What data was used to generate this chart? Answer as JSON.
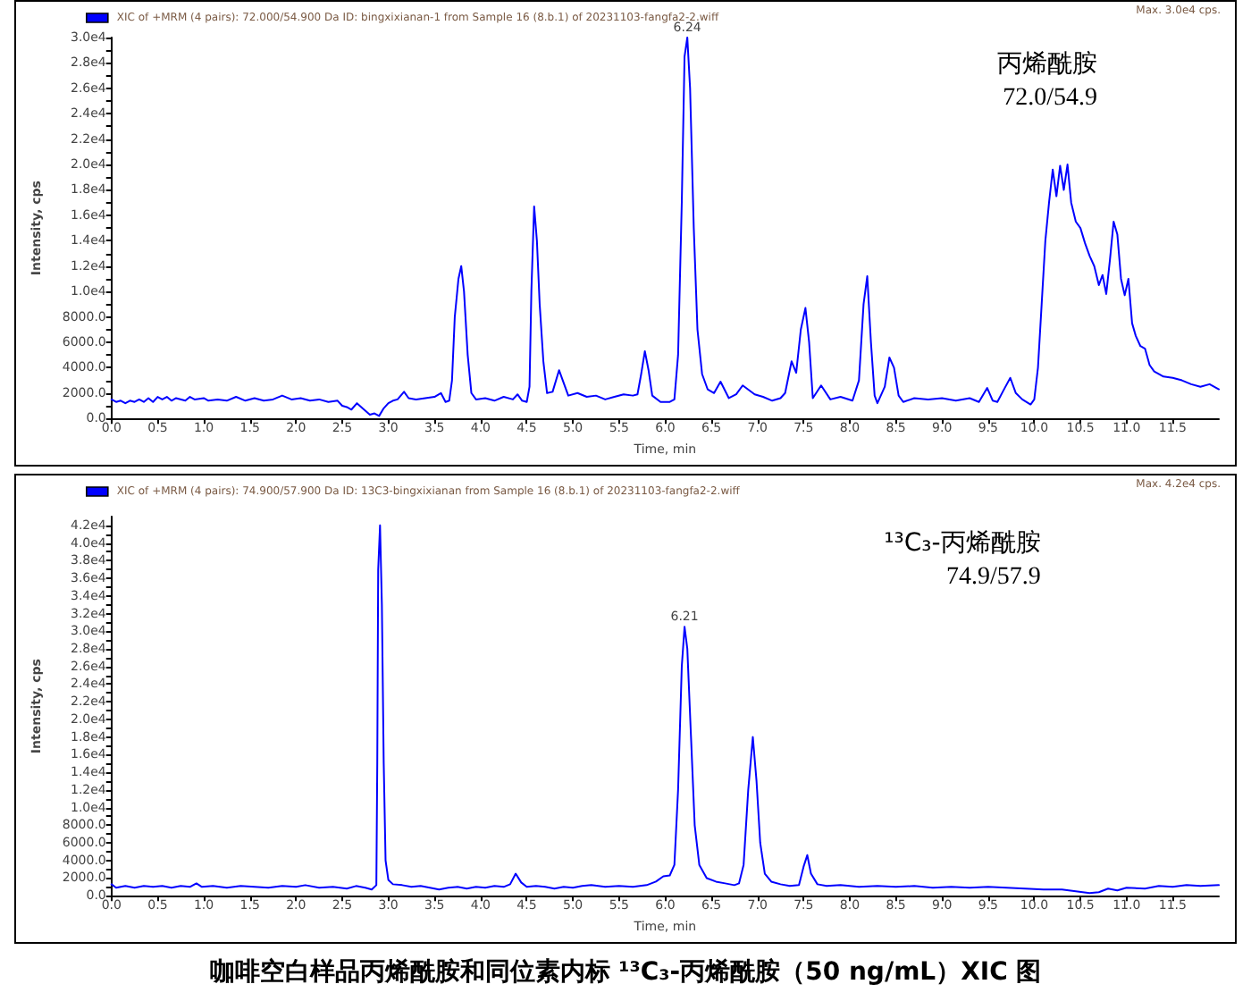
{
  "chart_data": [
    {
      "type": "line",
      "title": "丙烯酰胺",
      "subtitle": "72.0/54.9",
      "xlabel": "Time, min",
      "ylabel": "Intensity, cps",
      "legend": "top left",
      "grid": false,
      "marker": "none",
      "line_style": "solid",
      "annotations": [
        "Max. 3.0e4 cps.",
        {
          "text": "6.24",
          "x": 6.24,
          "y": 30000
        }
      ],
      "xlim": [
        0,
        12
      ],
      "ylim": [
        0,
        30000
      ],
      "xticks": [
        {
          "value": 0,
          "label": "0.0"
        },
        0.5,
        {
          "value": 1,
          "label": "1.0"
        },
        1.5,
        {
          "value": 2,
          "label": "2.0"
        },
        2.5,
        {
          "value": 3,
          "label": "3.0"
        },
        3.5,
        {
          "value": 4,
          "label": "4.0"
        },
        4.5,
        {
          "value": 5,
          "label": "5.0"
        },
        5.5,
        {
          "value": 6,
          "label": "6.0"
        },
        6.5,
        {
          "value": 7,
          "label": "7.0"
        },
        7.5,
        {
          "value": 8,
          "label": "8.0"
        },
        8.5,
        {
          "value": 9,
          "label": "9.0"
        },
        9.5,
        {
          "value": 10,
          "label": "10.0"
        },
        10.5,
        {
          "value": 11,
          "label": "11.0"
        },
        11.5
      ],
      "yticks": [
        {
          "value": 0,
          "label": "0.0"
        },
        {
          "value": 1000,
          "label": null
        },
        {
          "value": 2000,
          "label": "2000.0"
        },
        {
          "value": 3000,
          "label": null
        },
        {
          "value": 4000,
          "label": "4000.0"
        },
        {
          "value": 5000,
          "label": null
        },
        {
          "value": 6000,
          "label": "6000.0"
        },
        {
          "value": 7000,
          "label": null
        },
        {
          "value": 8000,
          "label": "8000.0"
        },
        {
          "value": 9000,
          "label": null
        },
        {
          "value": 10000,
          "label": "1.0e4"
        },
        {
          "value": 11000,
          "label": null
        },
        {
          "value": 12000,
          "label": "1.2e4"
        },
        {
          "value": 13000,
          "label": null
        },
        {
          "value": 14000,
          "label": "1.4e4"
        },
        {
          "value": 15000,
          "label": null
        },
        {
          "value": 16000,
          "label": "1.6e4"
        },
        {
          "value": 17000,
          "label": null
        },
        {
          "value": 18000,
          "label": "1.8e4"
        },
        {
          "value": 19000,
          "label": null
        },
        {
          "value": 20000,
          "label": "2.0e4"
        },
        {
          "value": 21000,
          "label": null
        },
        {
          "value": 22000,
          "label": "2.2e4"
        },
        {
          "value": 23000,
          "label": null
        },
        {
          "value": 24000,
          "label": "2.4e4"
        },
        {
          "value": 25000,
          "label": null
        },
        {
          "value": 26000,
          "label": "2.6e4"
        },
        {
          "value": 27000,
          "label": null
        },
        {
          "value": 28000,
          "label": "2.8e4"
        },
        {
          "value": 29000,
          "label": null
        },
        {
          "value": 30000,
          "label": "3.0e4"
        }
      ],
      "x": [
        0,
        0.05,
        0.1,
        0.15,
        0.2,
        0.25,
        0.3,
        0.35,
        0.4,
        0.45,
        0.5,
        0.55,
        0.6,
        0.65,
        0.7,
        0.8,
        0.85,
        0.9,
        1,
        1.05,
        1.15,
        1.25,
        1.35,
        1.45,
        1.55,
        1.65,
        1.75,
        1.85,
        1.95,
        2.05,
        2.15,
        2.25,
        2.35,
        2.45,
        2.5,
        2.55,
        2.6,
        2.66,
        2.72,
        2.8,
        2.85,
        2.9,
        2.95,
        3,
        3.05,
        3.1,
        3.17,
        3.22,
        3.3,
        3.4,
        3.5,
        3.57,
        3.62,
        3.66,
        3.69,
        3.72,
        3.76,
        3.79,
        3.82,
        3.86,
        3.9,
        3.95,
        4.05,
        4.15,
        4.25,
        4.35,
        4.4,
        4.45,
        4.5,
        4.53,
        4.55,
        4.58,
        4.61,
        4.64,
        4.68,
        4.72,
        4.78,
        4.85,
        4.9,
        4.95,
        5.05,
        5.15,
        5.25,
        5.35,
        5.45,
        5.55,
        5.65,
        5.7,
        5.74,
        5.78,
        5.82,
        5.86,
        5.95,
        6.05,
        6.1,
        6.14,
        6.18,
        6.21,
        6.24,
        6.27,
        6.31,
        6.35,
        6.4,
        6.46,
        6.53,
        6.6,
        6.69,
        6.77,
        6.84,
        6.97,
        7.06,
        7.16,
        7.25,
        7.3,
        7.37,
        7.42,
        7.47,
        7.52,
        7.56,
        7.6,
        7.69,
        7.79,
        7.9,
        8.03,
        8.1,
        8.15,
        8.19,
        8.23,
        8.27,
        8.3,
        8.38,
        8.43,
        8.48,
        8.53,
        8.58,
        8.7,
        8.85,
        9,
        9.15,
        9.3,
        9.4,
        9.49,
        9.55,
        9.6,
        9.68,
        9.74,
        9.8,
        9.87,
        9.96,
        10,
        10.04,
        10.08,
        10.12,
        10.16,
        10.2,
        10.24,
        10.28,
        10.32,
        10.36,
        10.4,
        10.45,
        10.5,
        10.55,
        10.6,
        10.65,
        10.7,
        10.74,
        10.78,
        10.82,
        10.86,
        10.9,
        10.94,
        10.98,
        11.02,
        11.06,
        11.1,
        11.15,
        11.2,
        11.25,
        11.3,
        11.4,
        11.5,
        11.6,
        11.7,
        11.8,
        11.9,
        12
      ],
      "series": [
        {
          "name": "XIC of +MRM (4 pairs): 72.000/54.900 Da ID: bingxixianan-1 from Sample 16 (8.b.1) of 20231103-fangfa2-2.wiff",
          "color": "#0000ff",
          "values": [
            1500,
            1300,
            1400,
            1200,
            1400,
            1300,
            1500,
            1300,
            1600,
            1300,
            1700,
            1500,
            1700,
            1400,
            1600,
            1400,
            1700,
            1500,
            1600,
            1400,
            1500,
            1400,
            1700,
            1400,
            1600,
            1400,
            1500,
            1800,
            1500,
            1600,
            1400,
            1500,
            1300,
            1400,
            1000,
            900,
            700,
            1200,
            800,
            300,
            400,
            200,
            800,
            1200,
            1400,
            1500,
            2100,
            1600,
            1500,
            1600,
            1700,
            2000,
            1300,
            1400,
            3000,
            8000,
            11000,
            12000,
            10000,
            5000,
            2000,
            1500,
            1600,
            1400,
            1700,
            1500,
            1900,
            1400,
            1300,
            2500,
            10000,
            16700,
            14000,
            9000,
            4500,
            2000,
            2100,
            3800,
            2800,
            1800,
            2000,
            1700,
            1800,
            1500,
            1700,
            1900,
            1800,
            1900,
            3500,
            5300,
            3800,
            1800,
            1300,
            1300,
            1500,
            5000,
            17000,
            28500,
            30000,
            26000,
            15000,
            7000,
            3500,
            2300,
            2000,
            2900,
            1600,
            1900,
            2600,
            1900,
            1700,
            1400,
            1600,
            2000,
            4500,
            3600,
            7000,
            8700,
            6000,
            1600,
            2600,
            1500,
            1700,
            1400,
            3000,
            9000,
            11200,
            6000,
            1800,
            1200,
            2500,
            4800,
            4000,
            1800,
            1300,
            1600,
            1500,
            1600,
            1400,
            1600,
            1300,
            2400,
            1400,
            1300,
            2400,
            3200,
            2000,
            1500,
            1100,
            1500,
            4000,
            9000,
            14000,
            17000,
            19600,
            17500,
            19900,
            18000,
            20000,
            17000,
            15500,
            15000,
            13800,
            12800,
            12000,
            10500,
            11300,
            9800,
            12500,
            15500,
            14500,
            11000,
            9700,
            11000,
            7500,
            6500,
            5700,
            5500,
            4200,
            3700,
            3300,
            3200,
            3000,
            2700,
            2500,
            2700,
            2300
          ]
        }
      ]
    },
    {
      "type": "line",
      "title": "¹³C₃-丙烯酰胺",
      "subtitle": "74.9/57.9",
      "xlabel": "Time, min",
      "ylabel": "Intensity, cps",
      "legend": "top left",
      "grid": false,
      "marker": "none",
      "line_style": "solid",
      "annotations": [
        "Max. 4.2e4 cps.",
        {
          "text": "6.21",
          "x": 6.21,
          "y": 30500
        },
        "咖啡空白样品丙烯酰胺和同位素内标 ¹³C₃-丙烯酰胺（50 ng/mL）XIC 图"
      ],
      "xlim": [
        0,
        12
      ],
      "ylim": [
        0,
        43000
      ],
      "xticks": [
        {
          "value": 0,
          "label": "0.0"
        },
        0.5,
        {
          "value": 1,
          "label": "1.0"
        },
        1.5,
        {
          "value": 2,
          "label": "2.0"
        },
        2.5,
        {
          "value": 3,
          "label": "3.0"
        },
        3.5,
        {
          "value": 4,
          "label": "4.0"
        },
        4.5,
        {
          "value": 5,
          "label": "5.0"
        },
        5.5,
        {
          "value": 6,
          "label": "6.0"
        },
        6.5,
        {
          "value": 7,
          "label": "7.0"
        },
        7.5,
        {
          "value": 8,
          "label": "8.0"
        },
        8.5,
        {
          "value": 9,
          "label": "9.0"
        },
        9.5,
        {
          "value": 10,
          "label": "10.0"
        },
        10.5,
        {
          "value": 11,
          "label": "11.0"
        },
        11.5
      ],
      "yticks": [
        {
          "value": 0,
          "label": "0.0"
        },
        {
          "value": 1000,
          "label": null
        },
        {
          "value": 2000,
          "label": "2000.0"
        },
        {
          "value": 3000,
          "label": null
        },
        {
          "value": 4000,
          "label": "4000.0"
        },
        {
          "value": 5000,
          "label": null
        },
        {
          "value": 6000,
          "label": "6000.0"
        },
        {
          "value": 7000,
          "label": null
        },
        {
          "value": 8000,
          "label": "8000.0"
        },
        {
          "value": 9000,
          "label": null
        },
        {
          "value": 10000,
          "label": "1.0e4"
        },
        {
          "value": 11000,
          "label": null
        },
        {
          "value": 12000,
          "label": "1.2e4"
        },
        {
          "value": 13000,
          "label": null
        },
        {
          "value": 14000,
          "label": "1.4e4"
        },
        {
          "value": 15000,
          "label": null
        },
        {
          "value": 16000,
          "label": "1.6e4"
        },
        {
          "value": 17000,
          "label": null
        },
        {
          "value": 18000,
          "label": "1.8e4"
        },
        {
          "value": 19000,
          "label": null
        },
        {
          "value": 20000,
          "label": "2.0e4"
        },
        {
          "value": 21000,
          "label": null
        },
        {
          "value": 22000,
          "label": "2.2e4"
        },
        {
          "value": 23000,
          "label": null
        },
        {
          "value": 24000,
          "label": "2.4e4"
        },
        {
          "value": 25000,
          "label": null
        },
        {
          "value": 26000,
          "label": "2.6e4"
        },
        {
          "value": 27000,
          "label": null
        },
        {
          "value": 28000,
          "label": "2.8e4"
        },
        {
          "value": 29000,
          "label": null
        },
        {
          "value": 30000,
          "label": "3.0e4"
        },
        {
          "value": 31000,
          "label": null
        },
        {
          "value": 32000,
          "label": "3.2e4"
        },
        {
          "value": 33000,
          "label": null
        },
        {
          "value": 34000,
          "label": "3.4e4"
        },
        {
          "value": 35000,
          "label": null
        },
        {
          "value": 36000,
          "label": "3.6e4"
        },
        {
          "value": 37000,
          "label": null
        },
        {
          "value": 38000,
          "label": "3.8e4"
        },
        {
          "value": 39000,
          "label": null
        },
        {
          "value": 40000,
          "label": "4.0e4"
        },
        {
          "value": 41000,
          "label": null
        },
        {
          "value": 42000,
          "label": "4.2e4"
        }
      ],
      "x": [
        0,
        0.05,
        0.15,
        0.25,
        0.35,
        0.45,
        0.55,
        0.65,
        0.75,
        0.85,
        0.92,
        0.98,
        1.1,
        1.25,
        1.4,
        1.55,
        1.7,
        1.85,
        2,
        2.1,
        2.25,
        2.4,
        2.55,
        2.65,
        2.75,
        2.82,
        2.87,
        2.88,
        2.89,
        2.91,
        2.93,
        2.95,
        2.97,
        3,
        3.05,
        3.15,
        3.25,
        3.35,
        3.45,
        3.55,
        3.65,
        3.75,
        3.85,
        3.95,
        4.05,
        4.15,
        4.25,
        4.32,
        4.38,
        4.44,
        4.5,
        4.6,
        4.7,
        4.8,
        4.9,
        5,
        5.1,
        5.2,
        5.35,
        5.5,
        5.65,
        5.8,
        5.9,
        5.98,
        6.05,
        6.1,
        6.14,
        6.18,
        6.21,
        6.24,
        6.28,
        6.32,
        6.37,
        6.45,
        6.55,
        6.65,
        6.75,
        6.8,
        6.85,
        6.9,
        6.95,
        6.99,
        7.03,
        7.08,
        7.15,
        7.25,
        7.35,
        7.45,
        7.5,
        7.54,
        7.58,
        7.65,
        7.75,
        7.9,
        8.1,
        8.3,
        8.5,
        8.7,
        8.9,
        9.1,
        9.3,
        9.5,
        9.7,
        9.9,
        10.1,
        10.3,
        10.45,
        10.6,
        10.7,
        10.8,
        10.9,
        11,
        11.2,
        11.35,
        11.5,
        11.65,
        11.8,
        12
      ],
      "series": [
        {
          "name": "XIC of +MRM (4 pairs): 74.900/57.900 Da ID: 13C3-bingxixianan from Sample 16 (8.b.1) of 20231103-fangfa2-2.wiff",
          "color": "#0000ff",
          "values": [
            1300,
            900,
            1100,
            900,
            1100,
            1000,
            1100,
            900,
            1100,
            1000,
            1400,
            1000,
            1100,
            900,
            1100,
            1000,
            900,
            1100,
            1000,
            1200,
            900,
            1000,
            800,
            1100,
            900,
            700,
            1200,
            15000,
            37000,
            42000,
            33000,
            15000,
            4000,
            1800,
            1300,
            1200,
            1000,
            1100,
            900,
            700,
            900,
            1000,
            800,
            1000,
            900,
            1100,
            1000,
            1300,
            2500,
            1500,
            1000,
            1100,
            1000,
            800,
            1000,
            900,
            1100,
            1200,
            1000,
            1100,
            1000,
            1200,
            1600,
            2200,
            2300,
            3500,
            12000,
            26000,
            30500,
            28000,
            18000,
            8000,
            3500,
            2000,
            1600,
            1400,
            1200,
            1400,
            3500,
            12000,
            18000,
            13000,
            6000,
            2500,
            1600,
            1300,
            1100,
            1200,
            3300,
            4600,
            2500,
            1300,
            1100,
            1200,
            1000,
            1100,
            1000,
            1100,
            900,
            1000,
            900,
            1000,
            900,
            800,
            700,
            700,
            500,
            300,
            400,
            800,
            600,
            900,
            800,
            1100,
            1000,
            1200,
            1100,
            1200
          ]
        }
      ]
    }
  ]
}
